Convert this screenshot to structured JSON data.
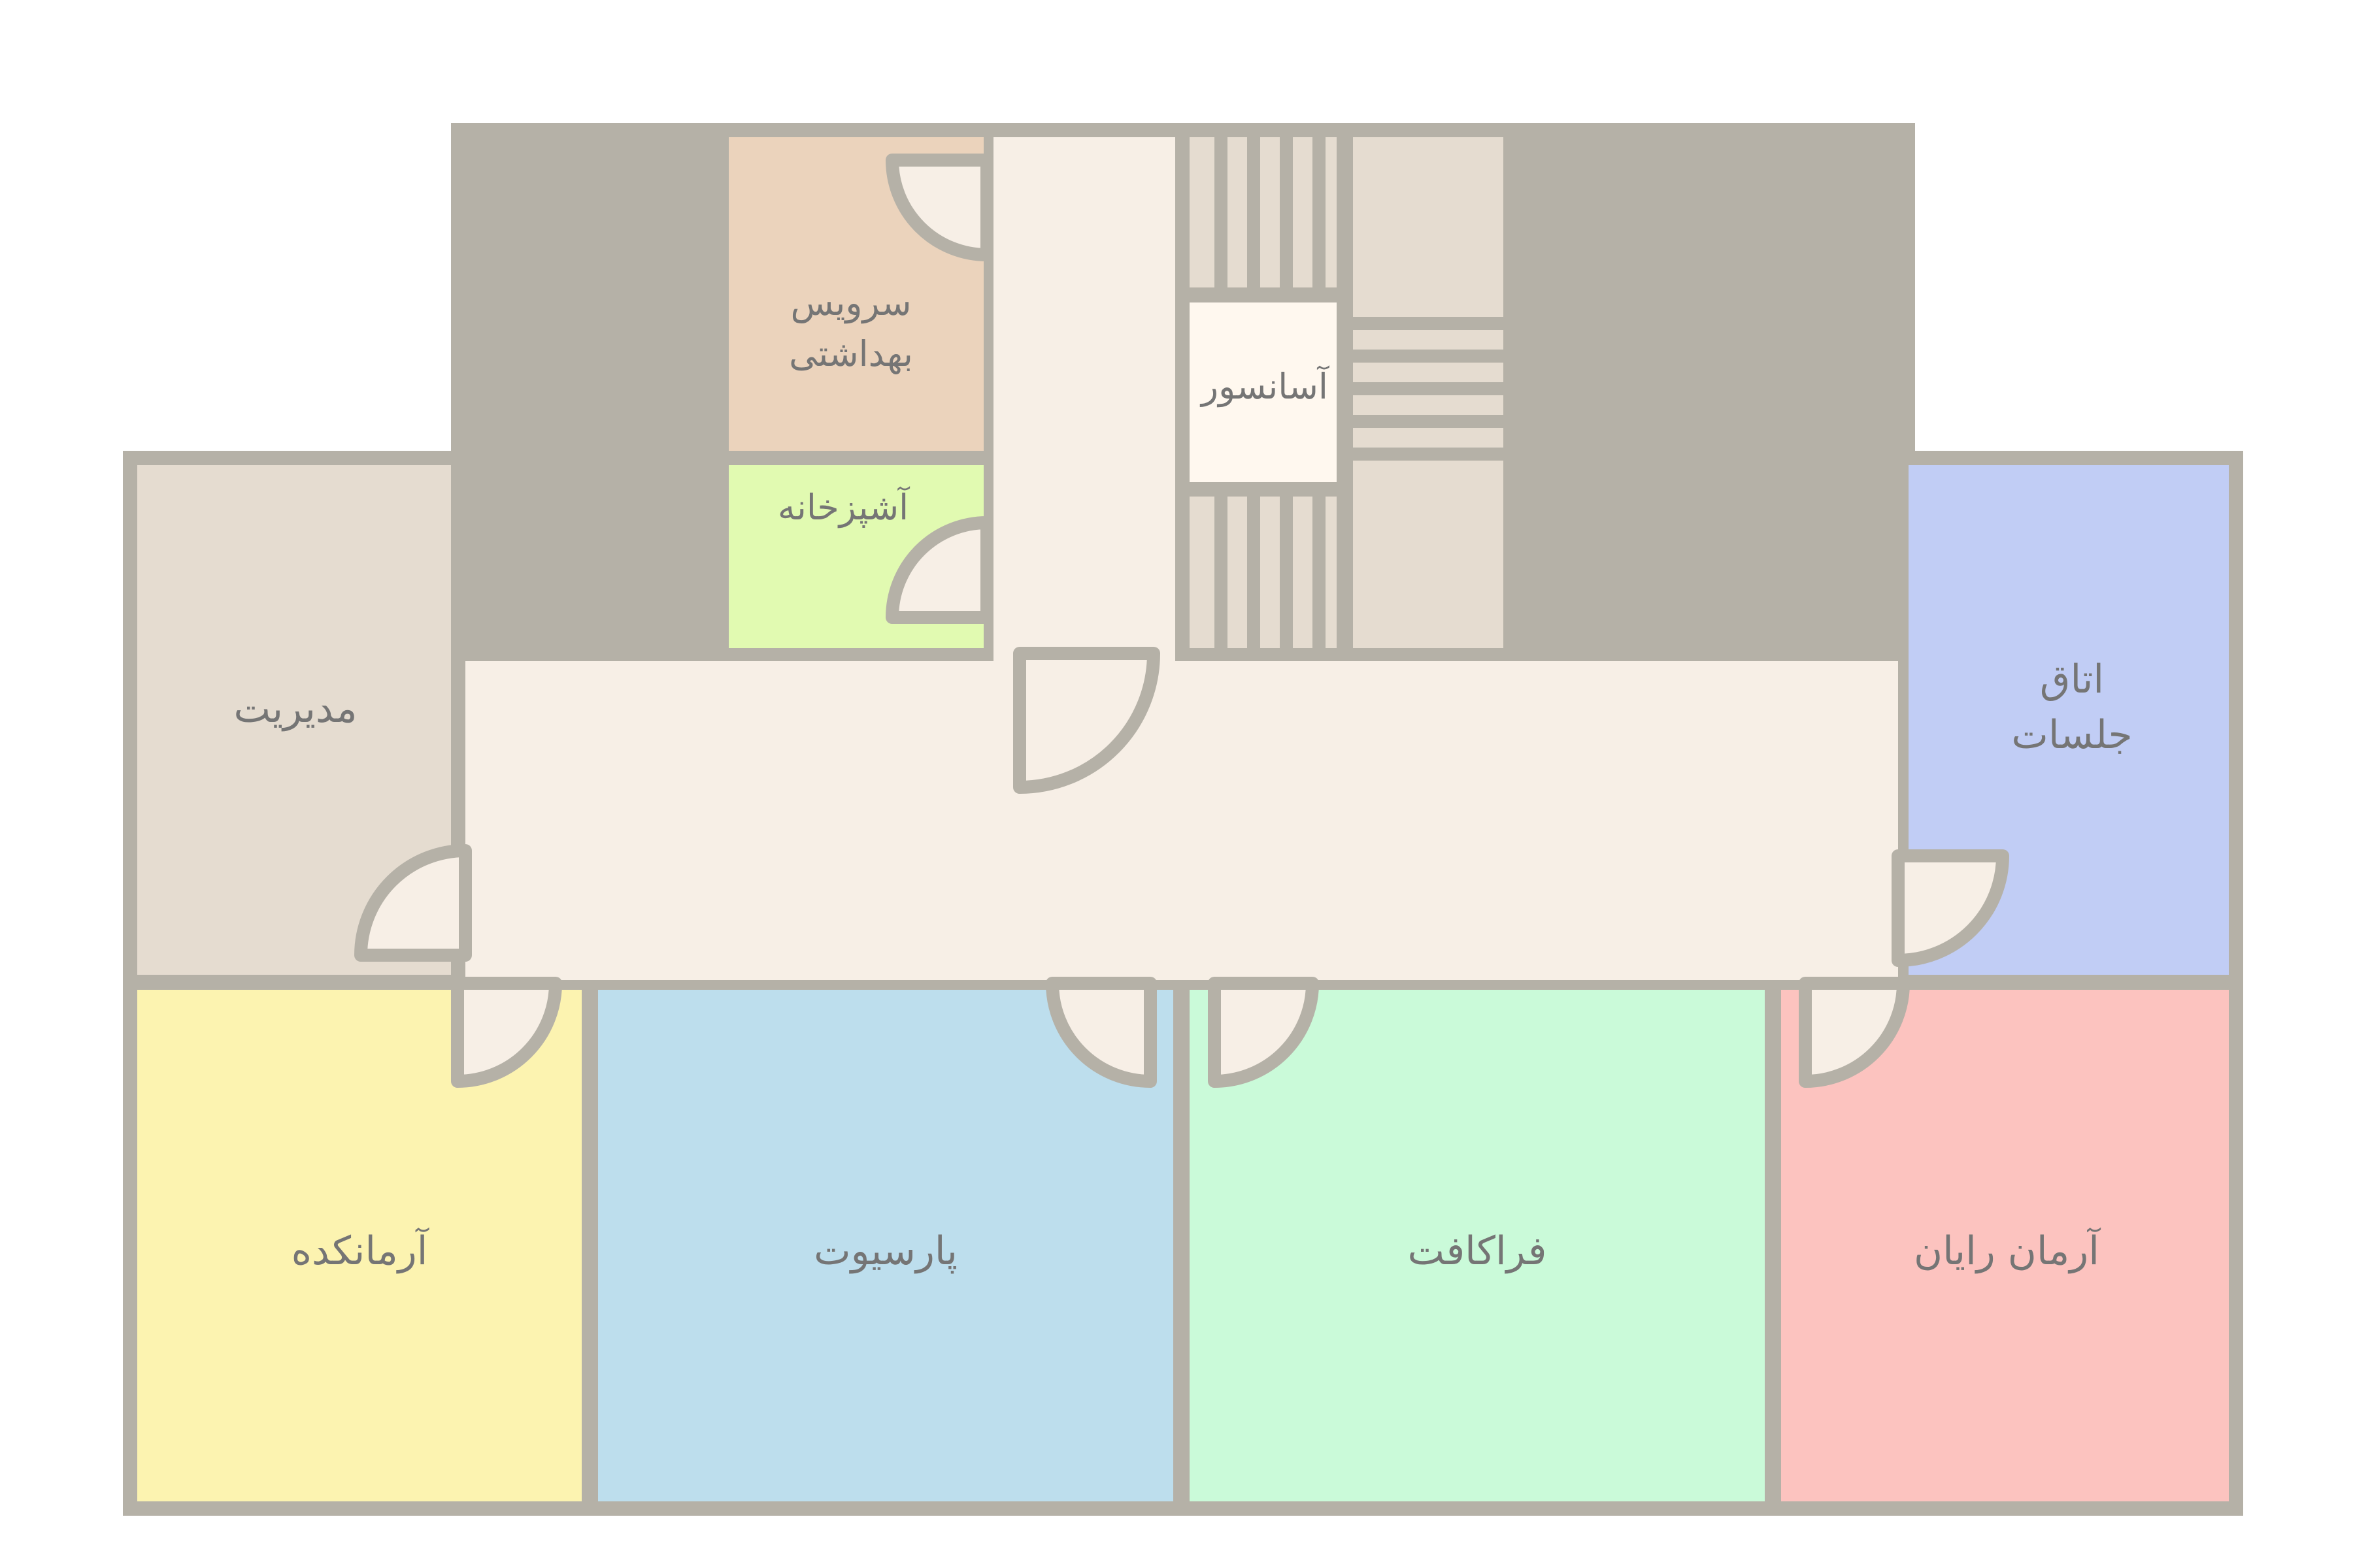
{
  "colors": {
    "wall": "#b5b1a7",
    "corridor": "#f7efe6",
    "management": "#e5dcd0",
    "meeting": "#c1cdf5",
    "toilet": "#ebd3bc",
    "kitchen": "#e1fab1",
    "elevator": "#fff8ef",
    "stairs": "#e5dcd0",
    "armankadeh": "#fcf3b0",
    "parsiot": "#bddeed",
    "farakaft": "#cafad9",
    "arman_rayan": "#fcc3bf",
    "text": "#757575"
  },
  "rooms": {
    "management": {
      "label": "مدیریت"
    },
    "meeting": {
      "line1": "اتاق",
      "line2": "جلسات"
    },
    "toilet": {
      "line1": "سرویس",
      "line2": "بهداشتی"
    },
    "kitchen": {
      "label": "آشپزخانه"
    },
    "elevator": {
      "label": "آسانسور"
    },
    "armankadeh": {
      "label": "آرمانکده"
    },
    "parsiot": {
      "label": "پارسیوت"
    },
    "farakaft": {
      "label": "فراکافت"
    },
    "arman_rayan": {
      "label": "آرمان رایان"
    }
  }
}
